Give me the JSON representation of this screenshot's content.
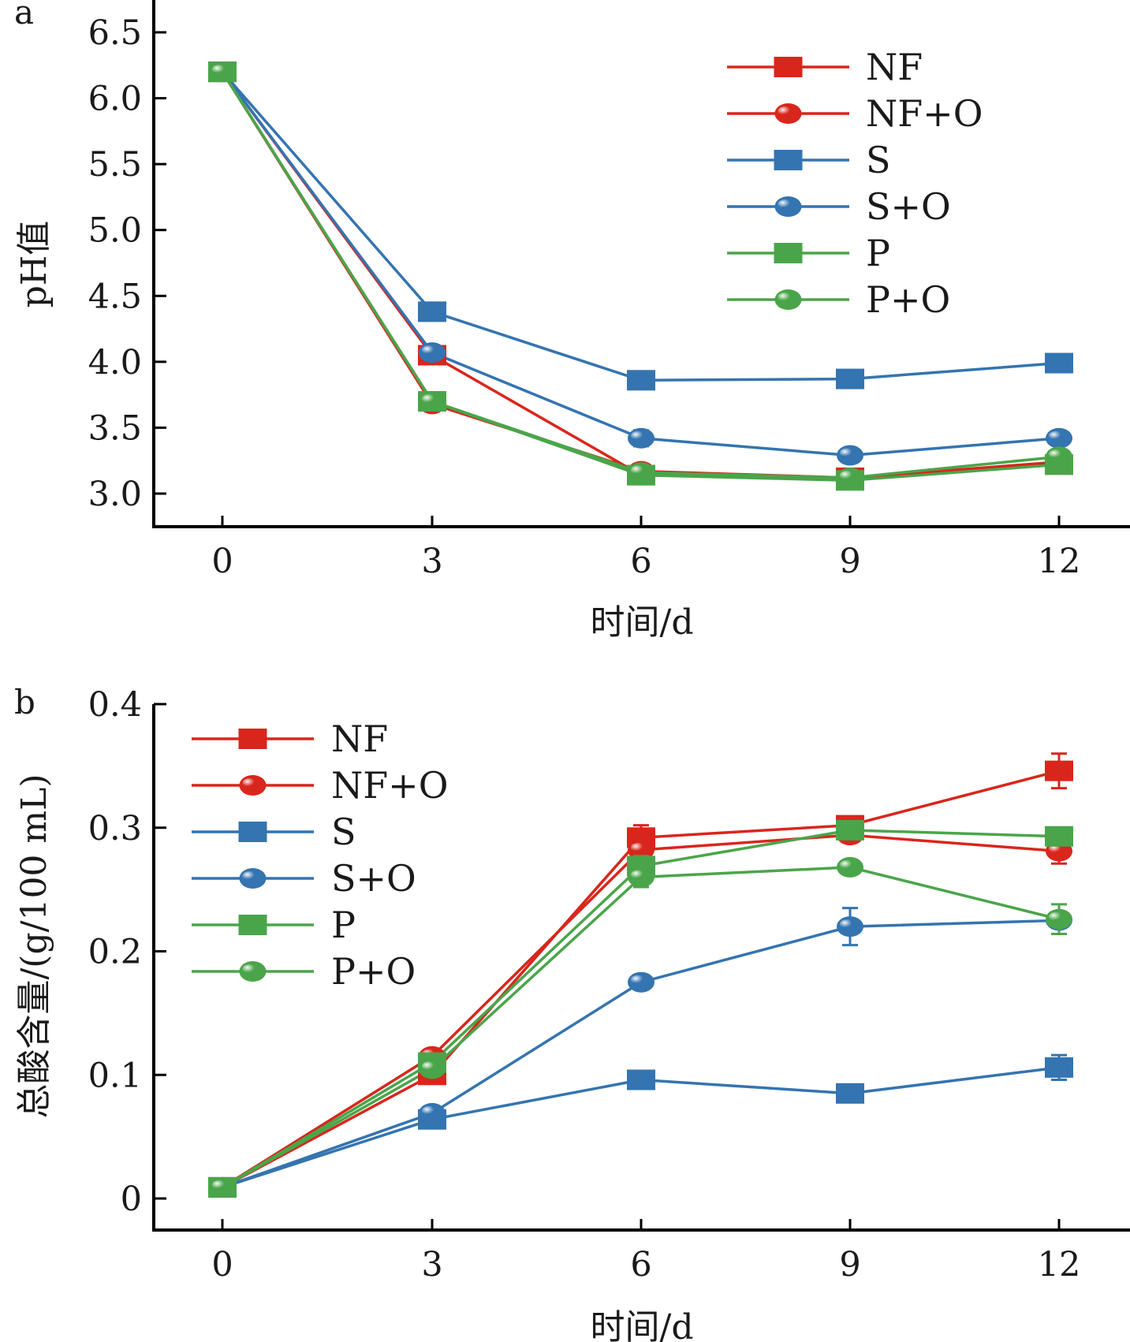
{
  "chart_data": [
    {
      "type": "line",
      "panel": "a",
      "title": "",
      "xlabel": "时间/d",
      "ylabel": "pH值",
      "x": [
        0,
        3,
        6,
        9,
        12
      ],
      "xticks": [
        "0",
        "3",
        "6",
        "9",
        "12"
      ],
      "xlim": [
        -1,
        14.2
      ],
      "ylim": [
        2.78,
        6.7
      ],
      "yticks": [
        "3.0",
        "3.5",
        "4.0",
        "4.5",
        "5.0",
        "5.5",
        "6.0",
        "6.5"
      ],
      "ytick_values": [
        3.0,
        3.5,
        4.0,
        4.5,
        5.0,
        5.5,
        6.0,
        6.5
      ],
      "legend_position": "top-right",
      "grid": false,
      "series": [
        {
          "name": "NF",
          "color": "#d9261c",
          "marker": "square",
          "values": [
            6.2,
            4.05,
            3.14,
            3.12,
            3.22
          ],
          "errors": [
            0.01,
            0.03,
            0.02,
            0.02,
            0.02
          ]
        },
        {
          "name": "NF+O",
          "color": "#d9261c",
          "marker": "circle",
          "values": [
            6.2,
            3.68,
            3.17,
            3.12,
            3.24
          ],
          "errors": [
            0.01,
            0.03,
            0.02,
            0.02,
            0.02
          ]
        },
        {
          "name": "S",
          "color": "#3474b0",
          "marker": "square",
          "values": [
            6.2,
            4.38,
            3.86,
            3.87,
            3.99
          ],
          "errors": [
            0.01,
            0.03,
            0.05,
            0.03,
            0.03
          ]
        },
        {
          "name": "S+O",
          "color": "#3474b0",
          "marker": "circle",
          "values": [
            6.2,
            4.07,
            3.42,
            3.29,
            3.42
          ],
          "errors": [
            0.01,
            0.03,
            0.06,
            0.02,
            0.02
          ]
        },
        {
          "name": "P",
          "color": "#4aa54a",
          "marker": "square",
          "values": [
            6.2,
            3.7,
            3.14,
            3.1,
            3.22
          ],
          "errors": [
            0.01,
            0.02,
            0.02,
            0.02,
            0.02
          ]
        },
        {
          "name": "P+O",
          "color": "#4aa54a",
          "marker": "circle",
          "values": [
            6.2,
            3.7,
            3.16,
            3.12,
            3.28
          ],
          "errors": [
            0.01,
            0.02,
            0.02,
            0.02,
            0.02
          ]
        }
      ]
    },
    {
      "type": "line",
      "panel": "b",
      "title": "",
      "xlabel": "时间/d",
      "ylabel": "总酸含量/(g/100 mL)",
      "x": [
        0,
        3,
        6,
        9,
        12
      ],
      "xticks": [
        "0",
        "3",
        "6",
        "9",
        "12"
      ],
      "xlim": [
        -1,
        14.2
      ],
      "ylim": [
        -0.025,
        0.4
      ],
      "yticks": [
        "0",
        "0.1",
        "0.2",
        "0.3",
        "0.4"
      ],
      "ytick_values": [
        0,
        0.1,
        0.2,
        0.3,
        0.4
      ],
      "legend_position": "top-left",
      "grid": false,
      "series": [
        {
          "name": "NF",
          "color": "#d9261c",
          "marker": "square",
          "values": [
            0.009,
            0.1,
            0.292,
            0.302,
            0.346
          ],
          "errors": [
            0.001,
            0.004,
            0.01,
            0.004,
            0.014
          ]
        },
        {
          "name": "NF+O",
          "color": "#d9261c",
          "marker": "circle",
          "values": [
            0.009,
            0.115,
            0.282,
            0.294,
            0.281
          ],
          "errors": [
            0.001,
            0.004,
            0.006,
            0.004,
            0.01
          ]
        },
        {
          "name": "S",
          "color": "#3474b0",
          "marker": "square",
          "values": [
            0.009,
            0.064,
            0.096,
            0.085,
            0.106
          ],
          "errors": [
            0.001,
            0.003,
            0.003,
            0.003,
            0.01
          ]
        },
        {
          "name": "S+O",
          "color": "#3474b0",
          "marker": "circle",
          "values": [
            0.009,
            0.069,
            0.175,
            0.22,
            0.225
          ],
          "errors": [
            0.001,
            0.003,
            0.005,
            0.015,
            0.006
          ]
        },
        {
          "name": "P",
          "color": "#4aa54a",
          "marker": "square",
          "values": [
            0.009,
            0.11,
            0.269,
            0.298,
            0.293
          ],
          "errors": [
            0.001,
            0.004,
            0.008,
            0.004,
            0.004
          ]
        },
        {
          "name": "P+O",
          "color": "#4aa54a",
          "marker": "circle",
          "values": [
            0.009,
            0.105,
            0.26,
            0.268,
            0.226
          ],
          "errors": [
            0.001,
            0.004,
            0.008,
            0.004,
            0.012
          ]
        }
      ]
    }
  ]
}
